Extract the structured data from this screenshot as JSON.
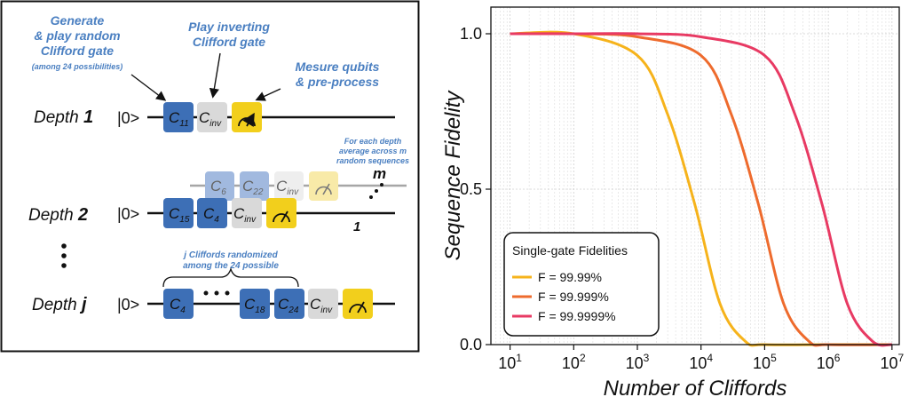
{
  "annotations": {
    "generate": [
      "Generate",
      "& play random",
      "Clifford gate"
    ],
    "generate_note": "(among 24 possibilities)",
    "invert": [
      "Play inverting",
      "Clifford gate"
    ],
    "measure": [
      "Mesure qubits",
      "& pre-process"
    ],
    "average_note": [
      "For each depth",
      "average across m",
      "random sequences"
    ],
    "randomized_note": [
      "j Cliffords randomized",
      "among the 24 possible"
    ]
  },
  "rows": [
    {
      "label": "Depth",
      "num": "1",
      "ket": "|0>",
      "gates": [
        {
          "base": "C",
          "sub": "11",
          "kind": "clifford"
        },
        {
          "base": "C",
          "sub": "inv",
          "kind": "inverse"
        },
        {
          "base": "",
          "sub": "",
          "kind": "measure"
        }
      ]
    },
    {
      "label": "Depth",
      "num": "2",
      "ket": "|0>",
      "gates": [
        {
          "base": "C",
          "sub": "15",
          "kind": "clifford"
        },
        {
          "base": "C",
          "sub": "4",
          "kind": "clifford"
        },
        {
          "base": "C",
          "sub": "inv",
          "kind": "inverse"
        },
        {
          "base": "",
          "sub": "",
          "kind": "measure"
        }
      ]
    },
    {
      "label": "Depth",
      "num": "j",
      "ket": "|0>",
      "gates": [
        {
          "base": "C",
          "sub": "4",
          "kind": "clifford"
        },
        {
          "base": "C",
          "sub": "18",
          "kind": "clifford"
        },
        {
          "base": "C",
          "sub": "24",
          "kind": "clifford"
        },
        {
          "base": "C",
          "sub": "inv",
          "kind": "inverse"
        },
        {
          "base": "",
          "sub": "",
          "kind": "measure"
        }
      ]
    }
  ],
  "ghost_row": {
    "gates": [
      {
        "base": "C",
        "sub": "6"
      },
      {
        "base": "C",
        "sub": "22"
      },
      {
        "base": "C",
        "sub": "inv"
      }
    ]
  },
  "sequence_labels": {
    "m": "m",
    "one": "1"
  },
  "colors": {
    "clifford": "#3d6fb6",
    "inverse": "#d9d9d9",
    "measure": "#f2cf1c",
    "annotation": "#4a7fc1"
  },
  "chart_data": {
    "type": "line",
    "xlabel": "Number of Cliffords",
    "ylabel": "Sequence Fidelity",
    "xscale": "log",
    "xlim": [
      10,
      10000000
    ],
    "ylim": [
      0,
      1.0
    ],
    "x_ticks": [
      {
        "base": "10",
        "exp": "1"
      },
      {
        "base": "10",
        "exp": "2"
      },
      {
        "base": "10",
        "exp": "3"
      },
      {
        "base": "10",
        "exp": "4"
      },
      {
        "base": "10",
        "exp": "5"
      },
      {
        "base": "10",
        "exp": "6"
      },
      {
        "base": "10",
        "exp": "7"
      }
    ],
    "y_ticks": [
      "0.0",
      "0.5",
      "1.0"
    ],
    "grid": true,
    "legend_title": "Single-gate Fidelities",
    "legend_position": "bottom-left",
    "series": [
      {
        "name": "F = 99.99%",
        "color": "#f6b31b",
        "x": [
          10,
          100,
          1000,
          3000,
          8000,
          20000,
          50000,
          100000,
          1000000,
          10000000
        ],
        "y": [
          1.0,
          1.0,
          0.93,
          0.74,
          0.45,
          0.13,
          0.01,
          0.0,
          0.0,
          0.0
        ]
      },
      {
        "name": "F = 99.999%",
        "color": "#ee6b2d",
        "x": [
          10,
          100,
          1000,
          10000,
          30000,
          80000,
          200000,
          500000,
          1000000,
          10000000
        ],
        "y": [
          1.0,
          1.0,
          0.99,
          0.93,
          0.74,
          0.45,
          0.13,
          0.01,
          0.0,
          0.0
        ]
      },
      {
        "name": "F = 99.9999%",
        "color": "#e83a63",
        "x": [
          10,
          100,
          1000,
          10000,
          100000,
          300000,
          800000,
          2000000,
          5000000,
          10000000
        ],
        "y": [
          1.0,
          1.0,
          1.0,
          0.99,
          0.93,
          0.74,
          0.45,
          0.13,
          0.01,
          0.0
        ]
      }
    ]
  }
}
